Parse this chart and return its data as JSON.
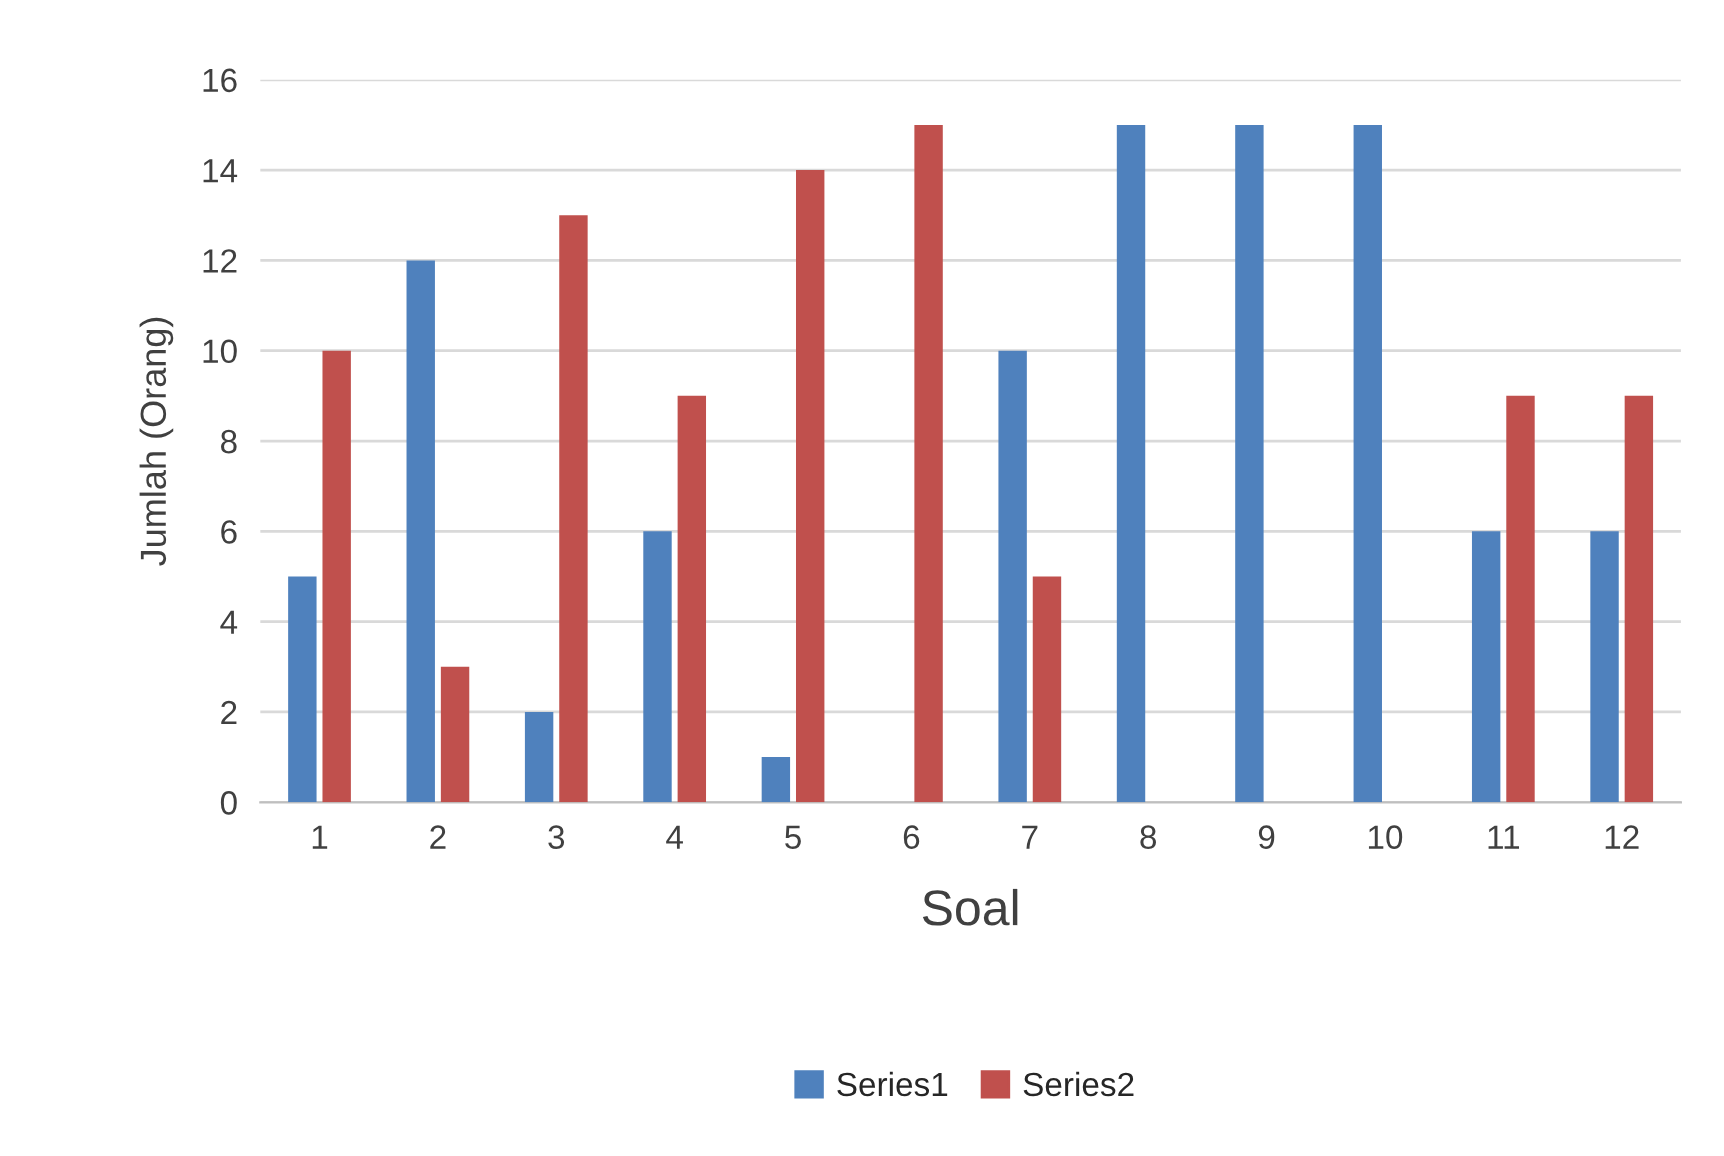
{
  "chart_data": {
    "type": "bar",
    "xlabel": "Soal",
    "ylabel": "Jumlah (Orang)",
    "categories": [
      "1",
      "2",
      "3",
      "4",
      "5",
      "6",
      "7",
      "8",
      "9",
      "10",
      "11",
      "12"
    ],
    "series": [
      {
        "name": "Series1",
        "color": "#4f81bd",
        "values": [
          5,
          12,
          2,
          6,
          1,
          0,
          10,
          15,
          15,
          15,
          6,
          6
        ]
      },
      {
        "name": "Series2",
        "color": "#c0504d",
        "values": [
          10,
          3,
          13,
          9,
          14,
          15,
          5,
          0,
          0,
          0,
          9,
          9
        ]
      }
    ],
    "ylim": [
      0,
      16
    ],
    "yticks": [
      0,
      2,
      4,
      6,
      8,
      10,
      12,
      14,
      16
    ],
    "grid": "y",
    "legend": "bottom"
  }
}
